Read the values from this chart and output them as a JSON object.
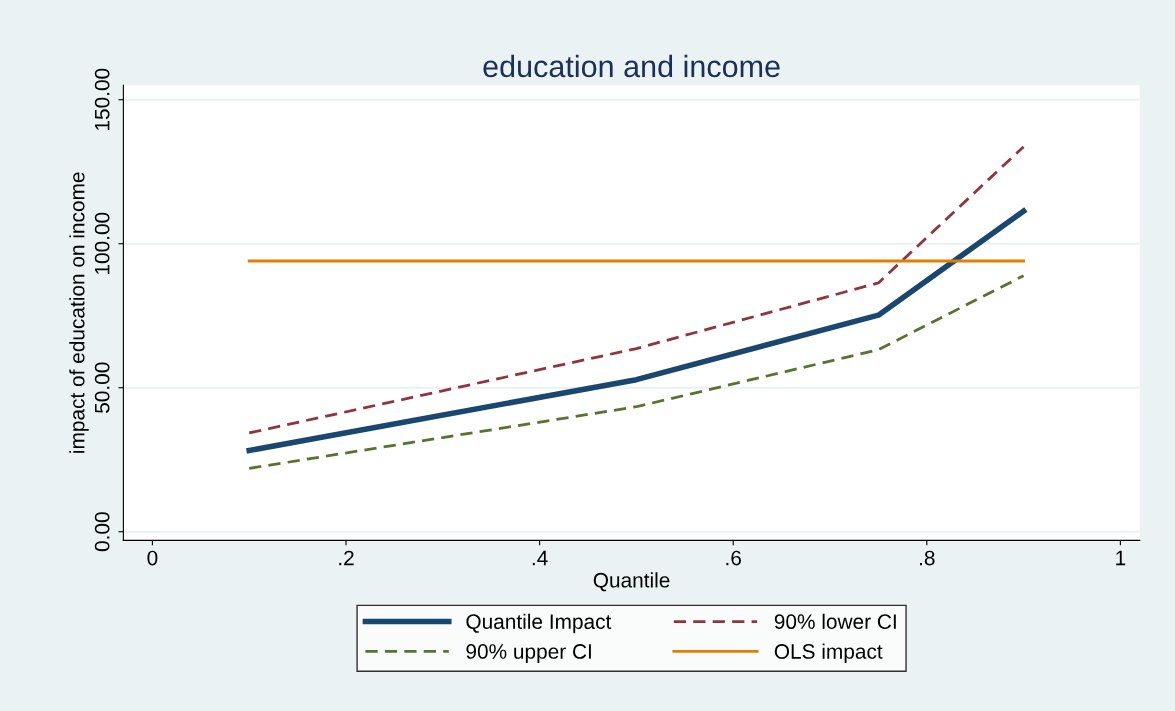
{
  "chart_data": {
    "type": "line",
    "title": "education and income",
    "xlabel": "Quantile",
    "ylabel": "impact of education on income",
    "x": [
      0.1,
      0.5,
      0.75,
      0.9
    ],
    "series": [
      {
        "name": "Quantile Impact",
        "color": "#1a476f",
        "values": [
          28.2,
          52.8,
          75.2,
          111.3
        ],
        "line_style": "solid"
      },
      {
        "name": "90% lower CI",
        "color": "#90353b",
        "values": [
          34.3,
          63.6,
          86.4,
          133.7
        ],
        "line_style": "dashed"
      },
      {
        "name": "90% upper CI",
        "color": "#55752f",
        "values": [
          22.0,
          43.4,
          63.2,
          88.9
        ],
        "line_style": "dashed"
      },
      {
        "name": "OLS impact",
        "color": "#e37e00",
        "values": [
          94.0,
          94.0,
          94.0,
          94.0
        ],
        "line_style": "solid"
      }
    ],
    "xlim": [
      -0.03,
      1.02
    ],
    "ylim": [
      -3,
      155
    ],
    "xticks": [
      {
        "value": 0,
        "label": "0"
      },
      {
        "value": 0.2,
        "label": ".2"
      },
      {
        "value": 0.4,
        "label": ".4"
      },
      {
        "value": 0.6,
        "label": ".6"
      },
      {
        "value": 0.8,
        "label": ".8"
      },
      {
        "value": 1,
        "label": "1"
      }
    ],
    "yticks": [
      {
        "value": 0,
        "label": "0.00"
      },
      {
        "value": 50,
        "label": "50.00"
      },
      {
        "value": 100,
        "label": "100.00"
      },
      {
        "value": 150,
        "label": "150.00"
      }
    ],
    "grid": "y",
    "legend": "bottom",
    "marker": "none"
  }
}
